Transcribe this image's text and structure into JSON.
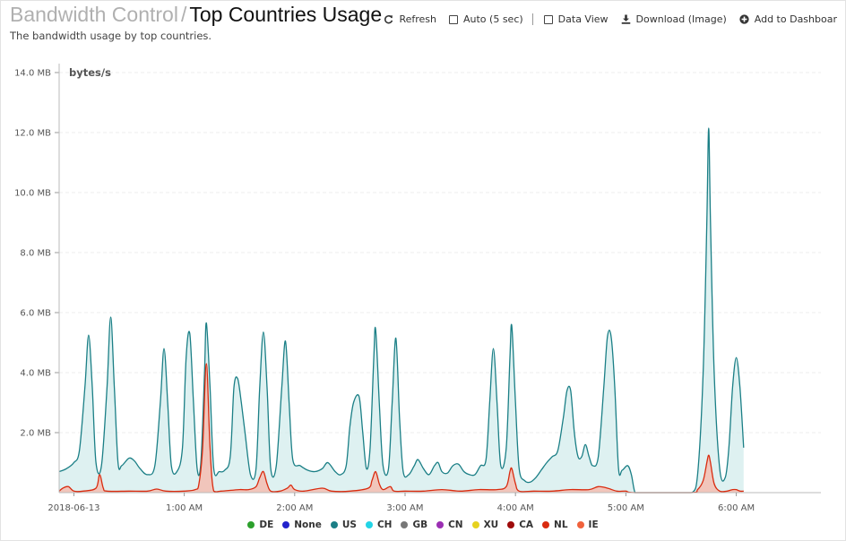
{
  "header": {
    "breadcrumb": "Bandwidth Control",
    "separator": "/",
    "title": "Top Countries Usage",
    "subtitle": "The bandwidth usage by top countries."
  },
  "toolbar": {
    "refresh_label": "Refresh",
    "auto_label": "Auto (5 sec)",
    "data_view_label": "Data View",
    "download_label": "Download (Image)",
    "add_dashboard_label": "Add to Dashboar"
  },
  "chart_data": {
    "type": "area",
    "ylabel": "bytes/s",
    "ylim": [
      0,
      14
    ],
    "yticks": [
      {
        "value": 0,
        "label": ""
      },
      {
        "value": 2,
        "label": "2.0 MB"
      },
      {
        "value": 4,
        "label": "4.0 MB"
      },
      {
        "value": 6,
        "label": "6.0 MB"
      },
      {
        "value": 8,
        "label": "8.0 MB"
      },
      {
        "value": 10,
        "label": "10.0 MB"
      },
      {
        "value": 12,
        "label": "12.0 MB"
      },
      {
        "value": 14,
        "label": "14.0 MB"
      }
    ],
    "xlim": [
      -8,
      406
    ],
    "xticks": [
      {
        "value": 0,
        "label": "2018-06-13"
      },
      {
        "value": 60,
        "label": "1:00 AM"
      },
      {
        "value": 120,
        "label": "2:00 AM"
      },
      {
        "value": 180,
        "label": "3:00 AM"
      },
      {
        "value": 240,
        "label": "4:00 AM"
      },
      {
        "value": 300,
        "label": "5:00 AM"
      },
      {
        "value": 360,
        "label": "6:00 AM"
      }
    ],
    "grid": true,
    "legend_position": "bottom",
    "legend": [
      {
        "name": "DE",
        "color": "#2ca02c"
      },
      {
        "name": "None",
        "color": "#2222cc"
      },
      {
        "name": "US",
        "color": "#1b7f86"
      },
      {
        "name": "CH",
        "color": "#22d4e6"
      },
      {
        "name": "GB",
        "color": "#777777"
      },
      {
        "name": "CN",
        "color": "#9b2fb3"
      },
      {
        "name": "XU",
        "color": "#e6d21f"
      },
      {
        "name": "CA",
        "color": "#9e0b0b"
      },
      {
        "name": "NL",
        "color": "#d92b0f"
      },
      {
        "name": "IE",
        "color": "#f0623c"
      }
    ],
    "series": [
      {
        "name": "US",
        "color": "#1b7f86",
        "fill": "#d3ecec",
        "points": [
          [
            -8,
            0.7
          ],
          [
            -4,
            0.8
          ],
          [
            0,
            1.0
          ],
          [
            3,
            1.4
          ],
          [
            6,
            3.5
          ],
          [
            8,
            5.25
          ],
          [
            10,
            3.5
          ],
          [
            12,
            1.0
          ],
          [
            15,
            0.9
          ],
          [
            18,
            3.5
          ],
          [
            20,
            5.85
          ],
          [
            22,
            3.5
          ],
          [
            24,
            1.0
          ],
          [
            26,
            0.9
          ],
          [
            30,
            1.15
          ],
          [
            33,
            1.05
          ],
          [
            36,
            0.8
          ],
          [
            40,
            0.6
          ],
          [
            44,
            0.9
          ],
          [
            47,
            3.0
          ],
          [
            49,
            4.8
          ],
          [
            51,
            3.0
          ],
          [
            53,
            0.9
          ],
          [
            56,
            0.7
          ],
          [
            59,
            1.5
          ],
          [
            61,
            4.5
          ],
          [
            63,
            5.3
          ],
          [
            65,
            3.0
          ],
          [
            67,
            0.8
          ],
          [
            69,
            1.0
          ],
          [
            71,
            4.0
          ],
          [
            72,
            5.65
          ],
          [
            74,
            3.5
          ],
          [
            76,
            0.8
          ],
          [
            79,
            0.7
          ],
          [
            82,
            0.75
          ],
          [
            85,
            1.2
          ],
          [
            87,
            3.5
          ],
          [
            89,
            3.8
          ],
          [
            91,
            3.0
          ],
          [
            93,
            2.0
          ],
          [
            96,
            0.6
          ],
          [
            99,
            0.8
          ],
          [
            101,
            3.5
          ],
          [
            103,
            5.35
          ],
          [
            105,
            3.5
          ],
          [
            107,
            0.8
          ],
          [
            110,
            0.9
          ],
          [
            113,
            3.5
          ],
          [
            115,
            5.05
          ],
          [
            117,
            3.0
          ],
          [
            119,
            1.1
          ],
          [
            123,
            0.9
          ],
          [
            127,
            0.75
          ],
          [
            131,
            0.7
          ],
          [
            135,
            0.8
          ],
          [
            138,
            1.0
          ],
          [
            142,
            0.7
          ],
          [
            145,
            0.6
          ],
          [
            148,
            0.9
          ],
          [
            150,
            2.2
          ],
          [
            152,
            3.0
          ],
          [
            155,
            3.2
          ],
          [
            157,
            2.0
          ],
          [
            159,
            0.8
          ],
          [
            161,
            1.5
          ],
          [
            163,
            4.5
          ],
          [
            164,
            5.45
          ],
          [
            166,
            3.0
          ],
          [
            168,
            0.9
          ],
          [
            171,
            0.8
          ],
          [
            173,
            3.0
          ],
          [
            175,
            5.15
          ],
          [
            177,
            2.5
          ],
          [
            179,
            0.7
          ],
          [
            182,
            0.6
          ],
          [
            185,
            0.9
          ],
          [
            187,
            1.1
          ],
          [
            190,
            0.8
          ],
          [
            193,
            0.6
          ],
          [
            196,
            0.9
          ],
          [
            198,
            1.0
          ],
          [
            200,
            0.7
          ],
          [
            203,
            0.65
          ],
          [
            206,
            0.9
          ],
          [
            209,
            0.95
          ],
          [
            212,
            0.7
          ],
          [
            215,
            0.6
          ],
          [
            218,
            0.6
          ],
          [
            221,
            0.9
          ],
          [
            224,
            1.1
          ],
          [
            226,
            3.0
          ],
          [
            228,
            4.8
          ],
          [
            230,
            3.0
          ],
          [
            232,
            0.9
          ],
          [
            235,
            1.5
          ],
          [
            237,
            4.5
          ],
          [
            238,
            5.55
          ],
          [
            240,
            3.0
          ],
          [
            242,
            0.8
          ],
          [
            245,
            0.4
          ],
          [
            248,
            0.35
          ],
          [
            251,
            0.5
          ],
          [
            254,
            0.75
          ],
          [
            257,
            1.0
          ],
          [
            260,
            1.2
          ],
          [
            263,
            1.4
          ],
          [
            266,
            2.5
          ],
          [
            268,
            3.4
          ],
          [
            270,
            3.4
          ],
          [
            272,
            2.0
          ],
          [
            274,
            1.2
          ],
          [
            276,
            1.2
          ],
          [
            278,
            1.6
          ],
          [
            280,
            1.2
          ],
          [
            282,
            0.9
          ],
          [
            285,
            1.2
          ],
          [
            288,
            3.5
          ],
          [
            290,
            5.2
          ],
          [
            292,
            5.2
          ],
          [
            294,
            3.5
          ],
          [
            296,
            0.8
          ],
          [
            298,
            0.75
          ],
          [
            301,
            0.9
          ],
          [
            303,
            0.6
          ],
          [
            305,
            0.0
          ],
          [
            308,
            0.0
          ],
          [
            330,
            0.0
          ],
          [
            336,
            0.0
          ],
          [
            339,
            0.6
          ],
          [
            342,
            4.0
          ],
          [
            344,
            9.0
          ],
          [
            345,
            12.15
          ],
          [
            346,
            9.0
          ],
          [
            348,
            4.0
          ],
          [
            351,
            0.8
          ],
          [
            354,
            0.5
          ],
          [
            356,
            1.5
          ],
          [
            358,
            3.5
          ],
          [
            360,
            4.5
          ],
          [
            362,
            3.5
          ],
          [
            364,
            1.5
          ]
        ]
      },
      {
        "name": "IE",
        "color": "#d92b0f",
        "fill": "#f7b6a8",
        "points": [
          [
            -8,
            0.05
          ],
          [
            -6,
            0.15
          ],
          [
            -3,
            0.2
          ],
          [
            0,
            0.05
          ],
          [
            5,
            0.05
          ],
          [
            12,
            0.15
          ],
          [
            14,
            0.6
          ],
          [
            16,
            0.15
          ],
          [
            18,
            0.05
          ],
          [
            30,
            0.05
          ],
          [
            40,
            0.05
          ],
          [
            45,
            0.12
          ],
          [
            50,
            0.05
          ],
          [
            60,
            0.05
          ],
          [
            66,
            0.1
          ],
          [
            68,
            0.3
          ],
          [
            70,
            1.5
          ],
          [
            72,
            4.3
          ],
          [
            74,
            1.5
          ],
          [
            76,
            0.05
          ],
          [
            80,
            0.05
          ],
          [
            90,
            0.1
          ],
          [
            95,
            0.1
          ],
          [
            99,
            0.2
          ],
          [
            101,
            0.5
          ],
          [
            103,
            0.7
          ],
          [
            105,
            0.3
          ],
          [
            107,
            0.05
          ],
          [
            112,
            0.05
          ],
          [
            116,
            0.15
          ],
          [
            118,
            0.25
          ],
          [
            120,
            0.1
          ],
          [
            125,
            0.05
          ],
          [
            135,
            0.15
          ],
          [
            140,
            0.05
          ],
          [
            150,
            0.05
          ],
          [
            160,
            0.15
          ],
          [
            162,
            0.4
          ],
          [
            164,
            0.7
          ],
          [
            166,
            0.3
          ],
          [
            168,
            0.1
          ],
          [
            172,
            0.2
          ],
          [
            174,
            0.05
          ],
          [
            180,
            0.05
          ],
          [
            190,
            0.05
          ],
          [
            200,
            0.1
          ],
          [
            210,
            0.05
          ],
          [
            220,
            0.1
          ],
          [
            230,
            0.1
          ],
          [
            235,
            0.2
          ],
          [
            237,
            0.7
          ],
          [
            238,
            0.8
          ],
          [
            240,
            0.3
          ],
          [
            242,
            0.05
          ],
          [
            250,
            0.05
          ],
          [
            260,
            0.05
          ],
          [
            270,
            0.1
          ],
          [
            280,
            0.1
          ],
          [
            285,
            0.2
          ],
          [
            290,
            0.15
          ],
          [
            295,
            0.05
          ],
          [
            300,
            0.05
          ],
          [
            305,
            0.0
          ],
          [
            335,
            0.0
          ],
          [
            339,
            0.1
          ],
          [
            342,
            0.4
          ],
          [
            344,
            1.0
          ],
          [
            345,
            1.25
          ],
          [
            346,
            1.0
          ],
          [
            348,
            0.3
          ],
          [
            351,
            0.05
          ],
          [
            355,
            0.05
          ],
          [
            358,
            0.1
          ],
          [
            360,
            0.1
          ],
          [
            362,
            0.05
          ],
          [
            364,
            0.05
          ]
        ]
      }
    ]
  }
}
